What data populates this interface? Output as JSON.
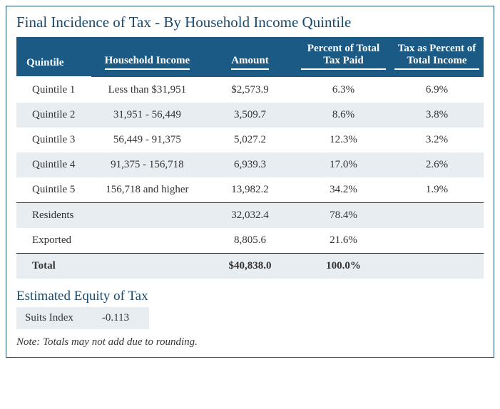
{
  "title": "Final Incidence of Tax - By Household Income Quintile",
  "columns": [
    "Quintile",
    "Household Income",
    "Amount",
    "Percent of Total Tax Paid",
    "Tax as Percent of Total Income"
  ],
  "rows": [
    {
      "q": "Quintile 1",
      "hi": "Less than $31,951",
      "amt": "$2,573.9",
      "pct": "6.3%",
      "pcti": "6.9%"
    },
    {
      "q": "Quintile 2",
      "hi": "31,951 - 56,449",
      "amt": "3,509.7",
      "pct": "8.6%",
      "pcti": "3.8%"
    },
    {
      "q": "Quintile 3",
      "hi": "56,449 - 91,375",
      "amt": "5,027.2",
      "pct": "12.3%",
      "pcti": "3.2%"
    },
    {
      "q": "Quintile 4",
      "hi": "91,375 - 156,718",
      "amt": "6,939.3",
      "pct": "17.0%",
      "pcti": "2.6%"
    },
    {
      "q": "Quintile 5",
      "hi": "156,718 and higher",
      "amt": "13,982.2",
      "pct": "34.2%",
      "pcti": "1.9%"
    }
  ],
  "sep_rows": [
    {
      "q": "Residents",
      "hi": "",
      "amt": "32,032.4",
      "pct": "78.4%",
      "pcti": ""
    },
    {
      "q": "Exported",
      "hi": "",
      "amt": "8,805.6",
      "pct": "21.6%",
      "pcti": ""
    }
  ],
  "total": {
    "q": "Total",
    "hi": "",
    "amt": "$40,838.0",
    "pct": "100.0%",
    "pcti": ""
  },
  "subtitle": "Estimated Equity of Tax",
  "equity": {
    "label": "Suits Index",
    "value": "-0.113"
  },
  "note": "Note: Totals may not add due to rounding.",
  "colors": {
    "header_bg": "#1a5a85",
    "header_text": "#ffffff",
    "row_even_bg": "#e8edf2",
    "row_odd_bg": "#ffffff",
    "title_color": "#1a4a6e",
    "border_color": "#1a4a6e",
    "text_color": "#333333"
  }
}
